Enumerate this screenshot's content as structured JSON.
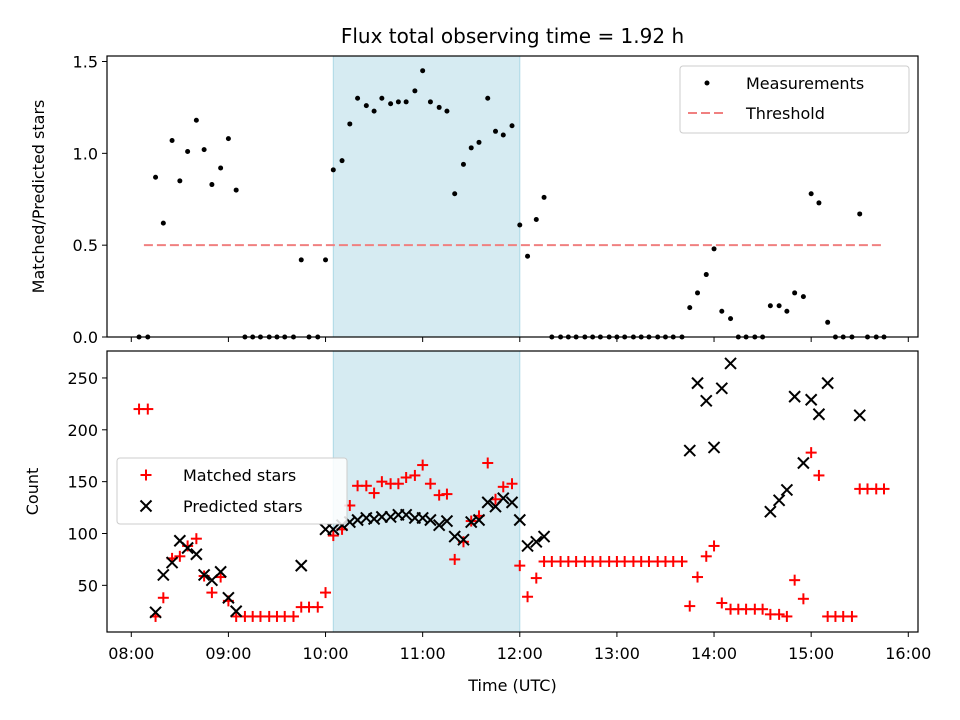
{
  "chart_data": [
    {
      "type": "scatter",
      "title": "Flux total observing time = 1.92 h",
      "ylabel": "Matched/Predicted stars",
      "xlabel": "",
      "ylim": [
        0,
        1.53
      ],
      "yticks": [
        0.0,
        0.5,
        1.0,
        1.5
      ],
      "ytick_labels": [
        "0.0",
        "0.5",
        "1.0",
        "1.5"
      ],
      "highlight_span": {
        "start": 10.08,
        "end": 12.0,
        "color": "#add8e6"
      },
      "legend": {
        "placement": "upper right",
        "entries": [
          "Measurements",
          "Threshold"
        ]
      },
      "threshold": {
        "name": "Threshold",
        "value": 0.5,
        "x_range": [
          8.13,
          15.75
        ],
        "color": "#f08080"
      },
      "series": [
        {
          "name": "Measurements",
          "color": "#000000",
          "x": [
            8.08,
            8.17,
            8.25,
            8.33,
            8.42,
            8.5,
            8.58,
            8.67,
            8.75,
            8.83,
            8.92,
            9.0,
            9.08,
            9.17,
            9.25,
            9.33,
            9.42,
            9.5,
            9.58,
            9.67,
            9.75,
            9.83,
            9.92,
            10.0,
            10.08,
            10.17,
            10.25,
            10.33,
            10.42,
            10.5,
            10.58,
            10.67,
            10.75,
            10.83,
            10.92,
            11.0,
            11.08,
            11.17,
            11.25,
            11.33,
            11.42,
            11.5,
            11.58,
            11.67,
            11.75,
            11.83,
            11.92,
            12.0,
            12.08,
            12.17,
            12.25,
            12.33,
            12.42,
            12.5,
            12.58,
            12.67,
            12.75,
            12.83,
            12.92,
            13.0,
            13.08,
            13.17,
            13.25,
            13.33,
            13.42,
            13.5,
            13.58,
            13.67,
            13.75,
            13.83,
            13.92,
            14.0,
            14.08,
            14.17,
            14.25,
            14.33,
            14.42,
            14.5,
            14.58,
            14.67,
            14.75,
            14.83,
            14.92,
            15.0,
            15.08,
            15.17,
            15.25,
            15.33,
            15.42,
            15.5,
            15.58,
            15.67,
            15.75
          ],
          "y": [
            0,
            0,
            0.87,
            0.62,
            1.07,
            0.85,
            1.01,
            1.18,
            1.02,
            0.83,
            0.92,
            1.08,
            0.8,
            0,
            0,
            0,
            0,
            0,
            0,
            0,
            0.42,
            0,
            0,
            0.42,
            0.91,
            0.96,
            1.16,
            1.3,
            1.26,
            1.23,
            1.3,
            1.27,
            1.28,
            1.28,
            1.34,
            1.45,
            1.28,
            1.25,
            1.23,
            0.78,
            0.94,
            1.03,
            1.06,
            1.3,
            1.12,
            1.1,
            1.15,
            0.61,
            0.44,
            0.64,
            0.76,
            0,
            0,
            0,
            0,
            0,
            0,
            0,
            0,
            0,
            0,
            0,
            0,
            0,
            0,
            0,
            0,
            0,
            0.16,
            0.24,
            0.34,
            0.48,
            0.14,
            0.1,
            0,
            0,
            0,
            0,
            0.17,
            0.17,
            0.14,
            0.24,
            0.22,
            0.78,
            0.73,
            0.08,
            0,
            0,
            0,
            0.67,
            0,
            0,
            0
          ]
        }
      ]
    },
    {
      "type": "scatter",
      "title": "",
      "xlabel": "Time (UTC)",
      "ylabel": "Count",
      "xlim": [
        7.75,
        16.1
      ],
      "ylim": [
        5,
        276
      ],
      "yticks": [
        50,
        100,
        150,
        200,
        250
      ],
      "ytick_labels": [
        "50",
        "100",
        "150",
        "200",
        "250"
      ],
      "xticks": [
        8,
        9,
        10,
        11,
        12,
        13,
        14,
        15,
        16
      ],
      "xtick_labels": [
        "08:00",
        "09:00",
        "10:00",
        "11:00",
        "12:00",
        "13:00",
        "14:00",
        "15:00",
        "16:00"
      ],
      "highlight_span": {
        "start": 10.08,
        "end": 12.0,
        "color": "#add8e6"
      },
      "legend": {
        "placement": "center left",
        "entries": [
          "Matched stars",
          "Predicted stars"
        ]
      },
      "series": [
        {
          "name": "Matched stars",
          "marker": "plus",
          "color": "#ff0000",
          "x": [
            8.08,
            8.17,
            8.25,
            8.33,
            8.42,
            8.5,
            8.58,
            8.67,
            8.75,
            8.83,
            8.92,
            9.0,
            9.08,
            9.17,
            9.25,
            9.33,
            9.42,
            9.5,
            9.58,
            9.67,
            9.75,
            9.83,
            9.92,
            10.0,
            10.08,
            10.17,
            10.25,
            10.33,
            10.42,
            10.5,
            10.58,
            10.67,
            10.75,
            10.83,
            10.92,
            11.0,
            11.08,
            11.17,
            11.25,
            11.33,
            11.42,
            11.5,
            11.58,
            11.67,
            11.75,
            11.83,
            11.92,
            12.0,
            12.08,
            12.17,
            12.25,
            12.33,
            12.42,
            12.5,
            12.58,
            12.67,
            12.75,
            12.83,
            12.92,
            13.0,
            13.08,
            13.17,
            13.25,
            13.33,
            13.42,
            13.5,
            13.58,
            13.67,
            13.75,
            13.83,
            13.92,
            14.0,
            14.08,
            14.17,
            14.25,
            14.33,
            14.42,
            14.5,
            14.58,
            14.67,
            14.75,
            14.83,
            14.92,
            15.0,
            15.08,
            15.17,
            15.25,
            15.33,
            15.42,
            15.5,
            15.58,
            15.67,
            15.75
          ],
          "y": [
            220,
            220,
            20,
            38,
            76,
            78,
            88,
            95,
            59,
            43,
            58,
            35,
            20,
            20,
            20,
            20,
            20,
            20,
            20,
            20,
            29,
            29,
            29,
            43,
            98,
            104,
            127,
            146,
            146,
            139,
            150,
            148,
            148,
            154,
            156,
            166,
            148,
            137,
            138,
            75,
            92,
            112,
            117,
            168,
            133,
            145,
            148,
            69,
            39,
            57,
            73,
            73,
            73,
            73,
            73,
            73,
            73,
            73,
            73,
            73,
            73,
            73,
            73,
            73,
            73,
            73,
            73,
            73,
            30,
            58,
            78,
            88,
            33,
            27,
            27,
            27,
            27,
            27,
            22,
            22,
            20,
            55,
            37,
            178,
            156,
            20,
            20,
            20,
            20,
            143,
            143,
            143,
            143
          ]
        },
        {
          "name": "Predicted stars",
          "marker": "x",
          "color": "#000000",
          "x": [
            8.25,
            8.33,
            8.42,
            8.5,
            8.58,
            8.67,
            8.75,
            8.83,
            8.92,
            9.0,
            9.08,
            9.75,
            10.0,
            10.08,
            10.17,
            10.25,
            10.33,
            10.42,
            10.5,
            10.58,
            10.67,
            10.75,
            10.83,
            10.92,
            11.0,
            11.08,
            11.17,
            11.25,
            11.33,
            11.42,
            11.5,
            11.58,
            11.67,
            11.75,
            11.83,
            11.92,
            12.0,
            12.08,
            12.17,
            12.25,
            13.75,
            13.83,
            13.92,
            14.0,
            14.08,
            14.17,
            14.58,
            14.67,
            14.75,
            14.83,
            14.92,
            15.0,
            15.08,
            15.17,
            15.5
          ],
          "y": [
            24,
            60,
            72,
            93,
            86,
            80,
            60,
            55,
            63,
            38,
            25,
            69,
            104,
            104,
            108,
            111,
            113,
            115,
            114,
            116,
            116,
            118,
            118,
            115,
            115,
            113,
            108,
            112,
            97,
            94,
            111,
            113,
            130,
            126,
            134,
            130,
            113,
            88,
            92,
            97,
            180,
            245,
            228,
            183,
            240,
            264,
            121,
            132,
            142,
            232,
            168,
            229,
            215,
            245,
            214
          ]
        }
      ]
    }
  ]
}
